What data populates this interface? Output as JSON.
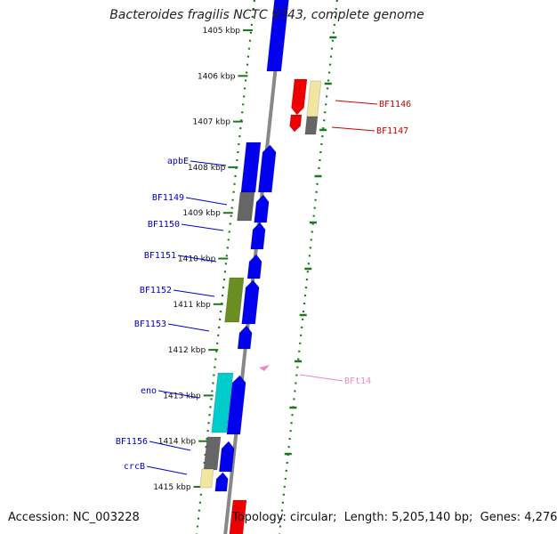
{
  "title": "Bacteroides fragilis NCTC 9343, complete genome",
  "footer": {
    "accession_label": "Accession:",
    "accession": "NC_003228",
    "topology_label": "Topology:",
    "topology": "circular",
    "length_label": "Length:",
    "length": "5,205,140 bp",
    "genes_label": "Genes:",
    "genes": "4,276"
  },
  "colors": {
    "forward_cds": "#0000ee",
    "reverse_cds": "#ee0000",
    "rna": "#f0e6a0",
    "gray_feature": "#666666",
    "green_feature": "#6b8e23",
    "cyan_feature": "#00cccc",
    "label_blue": "#0000cc",
    "label_red": "#cc0000",
    "label_pink": "#e88cc4",
    "tick_green": "#1a7a1a",
    "backbone": "#888888"
  },
  "scale_labels": [
    {
      "text": "1405 kbp",
      "kbp": 1405
    },
    {
      "text": "1406 kbp",
      "kbp": 1406
    },
    {
      "text": "1407 kbp",
      "kbp": 1407
    },
    {
      "text": "1408 kbp",
      "kbp": 1408
    },
    {
      "text": "1409 kbp",
      "kbp": 1409
    },
    {
      "text": "1410 kbp",
      "kbp": 1410
    },
    {
      "text": "1411 kbp",
      "kbp": 1411
    },
    {
      "text": "1412 kbp",
      "kbp": 1412
    },
    {
      "text": "1413 kbp",
      "kbp": 1413
    },
    {
      "text": "1414 kbp",
      "kbp": 1414
    },
    {
      "text": "1415 kbp",
      "kbp": 1415
    }
  ],
  "gene_labels": [
    {
      "name": "apbE",
      "color": "label_blue"
    },
    {
      "name": "BF1149",
      "color": "label_blue"
    },
    {
      "name": "BF1150",
      "color": "label_blue"
    },
    {
      "name": "BF1151",
      "color": "label_blue"
    },
    {
      "name": "BF1152",
      "color": "label_blue"
    },
    {
      "name": "BF1153",
      "color": "label_blue"
    },
    {
      "name": "eno",
      "color": "label_blue"
    },
    {
      "name": "BF1156",
      "color": "label_blue"
    },
    {
      "name": "crcB",
      "color": "label_blue"
    },
    {
      "name": "BF1146",
      "color": "label_red"
    },
    {
      "name": "BF1147",
      "color": "label_red"
    },
    {
      "name": "BFt14",
      "color": "label_pink"
    }
  ]
}
